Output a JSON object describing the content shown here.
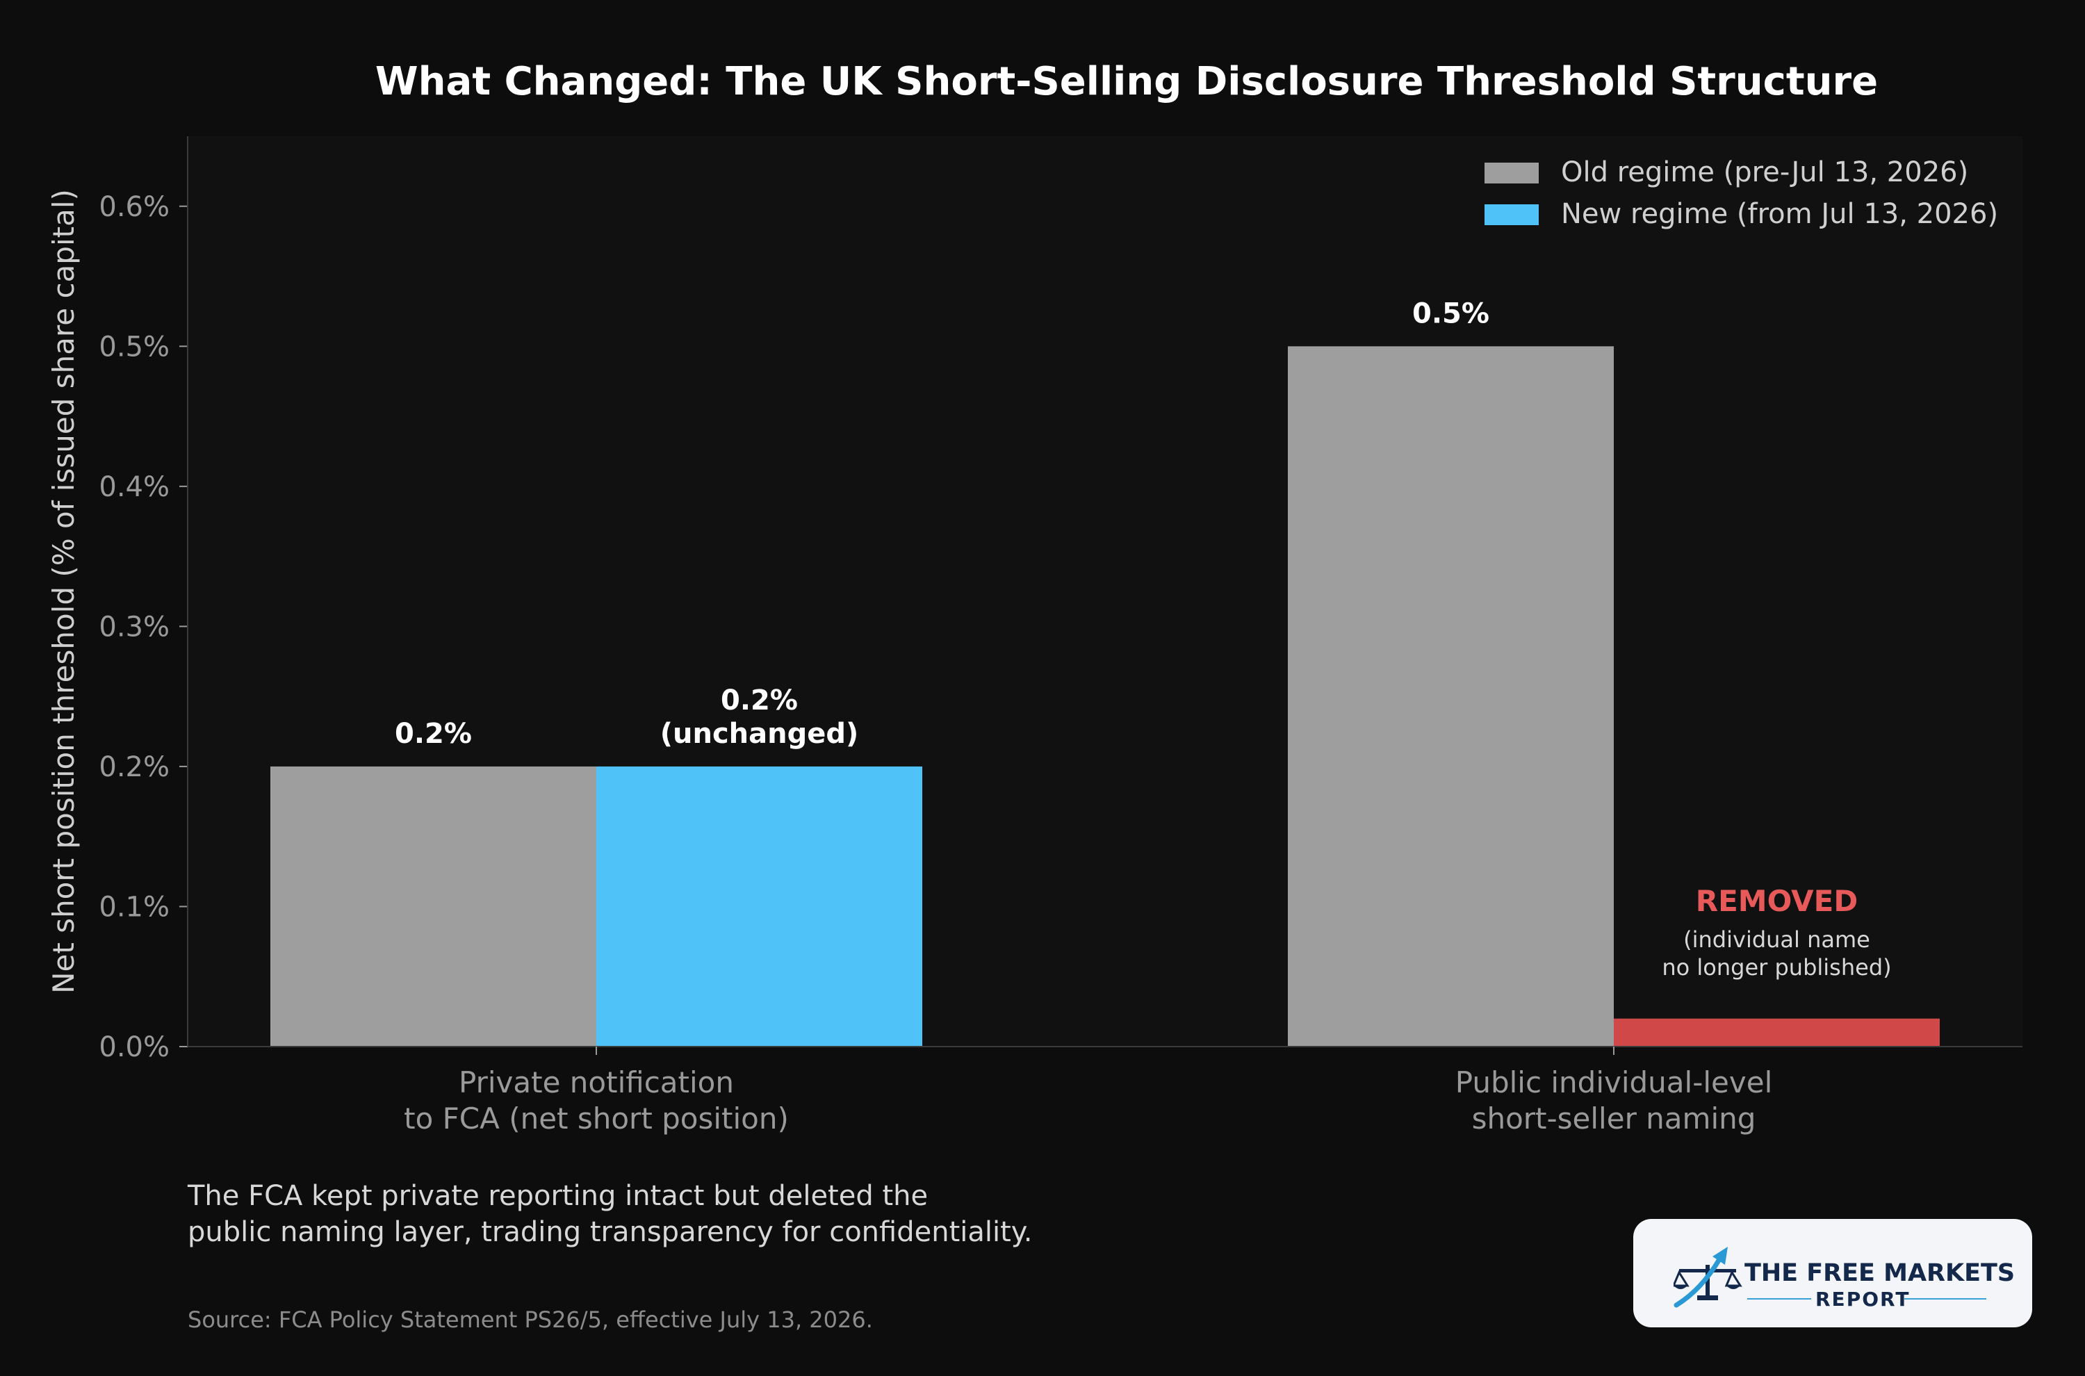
{
  "chart_data": {
    "type": "bar",
    "title": "What Changed: The UK Short-Selling Disclosure Threshold Structure",
    "ylabel": "Net short position threshold (% of issued share capital)",
    "xlabel": "",
    "ylim": [
      0,
      0.65
    ],
    "yticks": [
      0.0,
      0.1,
      0.2,
      0.3,
      0.4,
      0.5,
      0.6
    ],
    "ytick_labels": [
      "0.0%",
      "0.1%",
      "0.2%",
      "0.3%",
      "0.4%",
      "0.5%",
      "0.6%"
    ],
    "categories": [
      [
        "Private notification",
        "to FCA (net short position)"
      ],
      [
        "Public individual-level",
        "short-seller naming"
      ]
    ],
    "series": [
      {
        "name": "Old regime (pre-Jul 13, 2026)",
        "color": "#9e9e9e",
        "values": [
          0.2,
          0.5
        ],
        "data_labels": [
          [
            "0.2%"
          ],
          [
            "0.5%"
          ]
        ]
      },
      {
        "name": "New regime (from Jul 13, 2026)",
        "color": "#4fc3f7",
        "values": [
          0.2,
          0.02
        ],
        "data_labels": [
          [
            "0.2%",
            "(unchanged)"
          ],
          []
        ]
      }
    ],
    "removed_marker": {
      "category_index": 1,
      "series_index": 1,
      "color": "#d04848",
      "label": "REMOVED",
      "label_color": "#e85a5a",
      "note": [
        "(individual name",
        "no longer published)"
      ]
    },
    "legend_position": "top-right",
    "grid": false
  },
  "caption": {
    "line1": "The FCA kept private reporting intact but deleted the",
    "line2": "public naming layer, trading transparency for confidentiality."
  },
  "source": "Source: FCA Policy Statement PS26/5, effective July 13, 2026.",
  "logo": {
    "line1": "THE FREE MARKETS",
    "line2": "REPORT",
    "icon": "scales-with-rising-arrow-icon"
  },
  "colors": {
    "background": "#0d0d0d",
    "plot_background": "#111111",
    "title": "#ffffff",
    "axis_text": "#9a9a9a",
    "ylabel_text": "#cfcfcf",
    "legend_text": "#d0d0d0",
    "spine": "#3a3a3a"
  }
}
